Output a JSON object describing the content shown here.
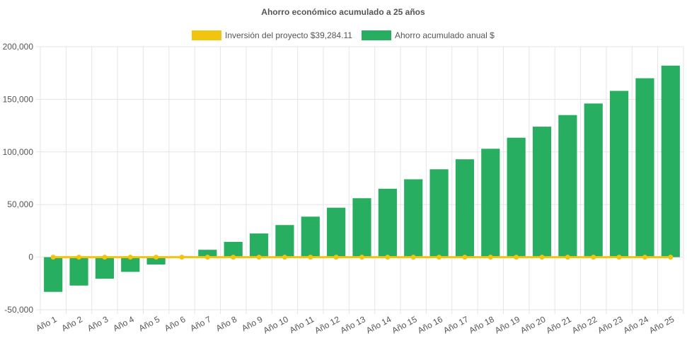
{
  "chart_data": {
    "type": "bar",
    "title": "Ahorro económico acumulado a 25 años",
    "categories": [
      "Año 1",
      "Año 2",
      "Año 3",
      "Año 4",
      "Año 5",
      "Año 6",
      "Año 7",
      "Año 8",
      "Año 9",
      "Año 10",
      "Año 11",
      "Año 12",
      "Año 13",
      "Año 14",
      "Año 15",
      "Año 16",
      "Año 17",
      "Año 18",
      "Año 19",
      "Año 20",
      "Año 21",
      "Año 22",
      "Año 23",
      "Año 24",
      "Año 25"
    ],
    "series": [
      {
        "name": "Inversión del proyecto $39,284.11",
        "type": "line",
        "color": "#f1c40f",
        "values": [
          0,
          0,
          0,
          0,
          0,
          0,
          0,
          0,
          0,
          0,
          0,
          0,
          0,
          0,
          0,
          0,
          0,
          0,
          0,
          0,
          0,
          0,
          0,
          0,
          0
        ]
      },
      {
        "name": "Ahorro acumulado anual $",
        "type": "bar",
        "color": "#27ae60",
        "values": [
          -33000,
          -27000,
          -20500,
          -14000,
          -7000,
          0,
          7000,
          14500,
          22500,
          30500,
          38500,
          47000,
          56000,
          65000,
          74000,
          83500,
          93000,
          103000,
          113500,
          124000,
          135000,
          146000,
          158000,
          170000,
          182000
        ]
      }
    ],
    "yticks": [
      "200,000",
      "150,000",
      "100,000",
      "50,000",
      "0",
      "-50,000"
    ],
    "ylim": [
      -50000,
      200000
    ],
    "grid": true,
    "legend_position": "top"
  }
}
